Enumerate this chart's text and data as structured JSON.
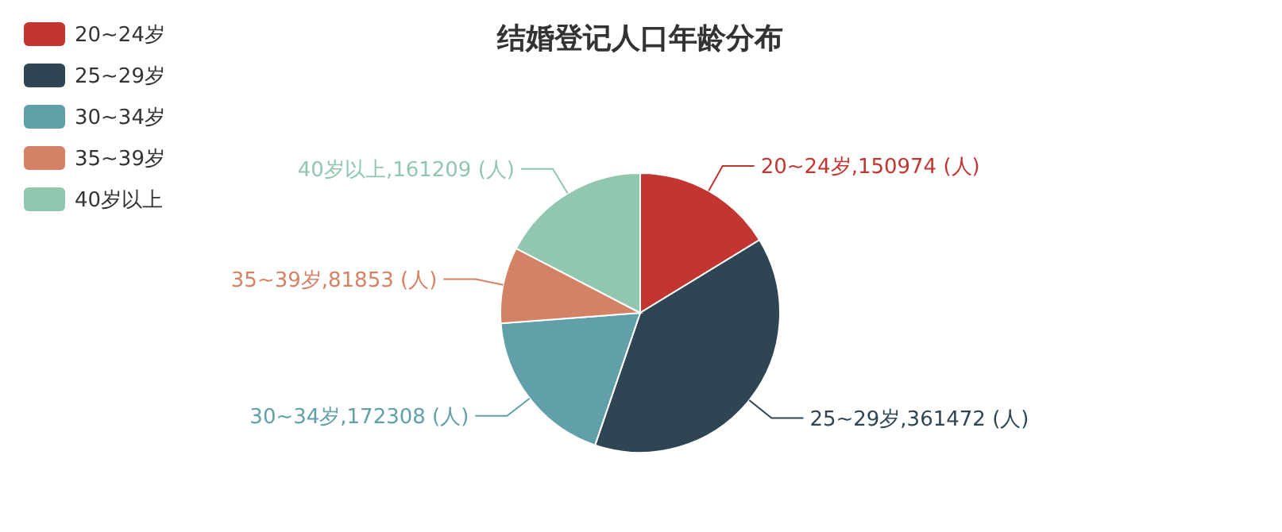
{
  "chart_data": {
    "type": "pie",
    "title": "结婚登记人口年龄分布",
    "categories": [
      "20~24岁",
      "25~29岁",
      "30~34岁",
      "35~39岁",
      "40岁以上"
    ],
    "values": [
      150974,
      361472,
      172308,
      81853,
      161209
    ],
    "colors": [
      "#c23531",
      "#2f4554",
      "#61a0a8",
      "#d48265",
      "#91c7ae"
    ],
    "value_labels": [
      "20~24岁,150974 (人)",
      "25~29岁,361472 (人)",
      "30~34岁,172308 (人)",
      "35~39岁,81853 (人)",
      "40岁以上,161209 (人)"
    ],
    "legend": "top left"
  }
}
